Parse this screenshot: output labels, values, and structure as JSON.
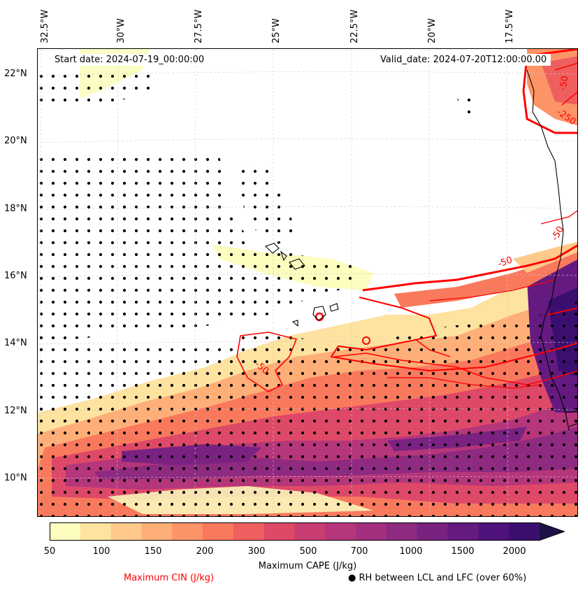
{
  "map": {
    "start_date": "Start date: 2024-07-19_00:00:00",
    "valid_date": "Valid_date: 2024-07-20T12:00:00.00",
    "lon_labels": [
      "32.5°W",
      "30°W",
      "27.5°W",
      "25°W",
      "22.5°W",
      "20°W",
      "17.5°W"
    ],
    "lat_labels": [
      "22°N",
      "20°N",
      "18°N",
      "16°N",
      "14°N",
      "12°N",
      "10°N"
    ],
    "contour_labels": [
      "-250",
      "-50",
      "-50",
      "-50",
      "-50"
    ],
    "colors": {
      "cin_contour": "#ff0000",
      "coastline": "#000000",
      "stipple": "#000000"
    }
  },
  "colorbar": {
    "label": "Maximum CAPE (J/kg)",
    "tick_labels": [
      "50",
      "100",
      "150",
      "200",
      "300",
      "500",
      "700",
      "1000",
      "1500",
      "2000"
    ],
    "colors": [
      "#fcfdbf",
      "#fde2a0",
      "#fec98a",
      "#feaf77",
      "#fc9467",
      "#f9795d",
      "#ef5f5f",
      "#de4968",
      "#c83e73",
      "#b5367a",
      "#a3307e",
      "#8e2a80",
      "#7a2281",
      "#641a80",
      "#4f127b",
      "#3b0f70",
      "#1f1147"
    ]
  },
  "legend": {
    "cin": "Maximum CIN (J/kg)",
    "rh": "● RH between LCL and LFC (over 60%)"
  }
}
